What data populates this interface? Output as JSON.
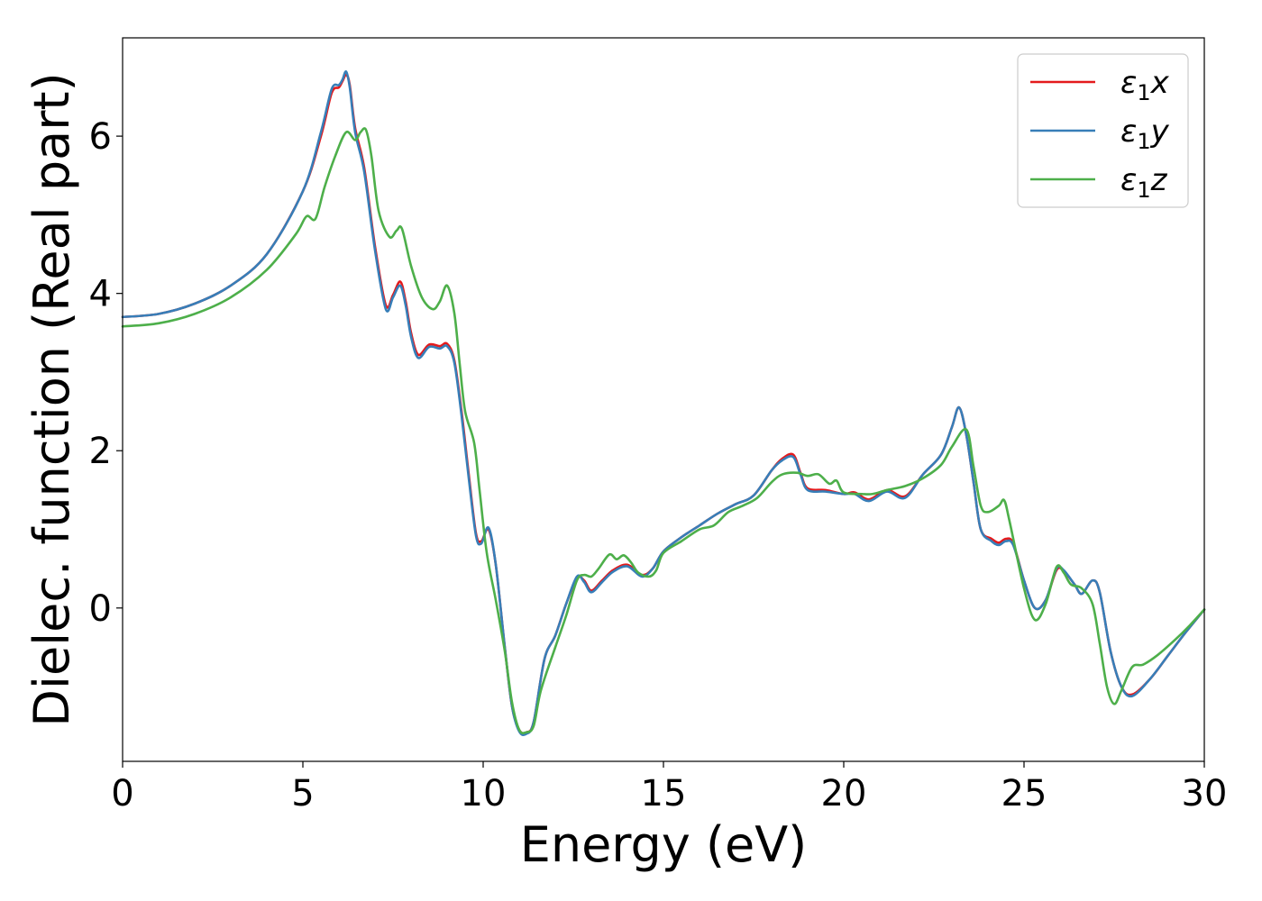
{
  "chart_data": {
    "type": "line",
    "title": "",
    "xlabel": "Energy (eV)",
    "ylabel": "Dielec. function (Real part)",
    "xlim": [
      0,
      30
    ],
    "ylim": [
      -1.95,
      7.25
    ],
    "xticks": [
      0,
      5,
      10,
      15,
      20,
      25,
      30
    ],
    "yticks": [
      0,
      2,
      4,
      6
    ],
    "xtick_labels": [
      "0",
      "5",
      "10",
      "15",
      "20",
      "25",
      "30"
    ],
    "ytick_labels": [
      "0",
      "2",
      "4",
      "6"
    ],
    "grid": false,
    "legend_position": "top-right",
    "series": [
      {
        "name": "ε₁x",
        "name_base": "ε",
        "name_sub": "1",
        "name_var": "x",
        "color": "#e41a1c",
        "points": [
          [
            0,
            3.7
          ],
          [
            1,
            3.74
          ],
          [
            2,
            3.87
          ],
          [
            3,
            4.1
          ],
          [
            4,
            4.5
          ],
          [
            5,
            5.3
          ],
          [
            5.5,
            6.0
          ],
          [
            5.8,
            6.55
          ],
          [
            6.0,
            6.62
          ],
          [
            6.1,
            6.7
          ],
          [
            6.2,
            6.78
          ],
          [
            6.3,
            6.65
          ],
          [
            6.45,
            6.1
          ],
          [
            6.7,
            5.6
          ],
          [
            7.0,
            4.6
          ],
          [
            7.3,
            3.85
          ],
          [
            7.5,
            3.98
          ],
          [
            7.7,
            4.15
          ],
          [
            7.85,
            3.9
          ],
          [
            8.0,
            3.5
          ],
          [
            8.2,
            3.22
          ],
          [
            8.5,
            3.35
          ],
          [
            8.8,
            3.33
          ],
          [
            9.0,
            3.36
          ],
          [
            9.2,
            3.15
          ],
          [
            9.4,
            2.5
          ],
          [
            9.6,
            1.7
          ],
          [
            9.8,
            0.95
          ],
          [
            9.95,
            0.85
          ],
          [
            10.15,
            1.0
          ],
          [
            10.35,
            0.55
          ],
          [
            10.6,
            -0.5
          ],
          [
            10.8,
            -1.25
          ],
          [
            11.0,
            -1.55
          ],
          [
            11.2,
            -1.58
          ],
          [
            11.4,
            -1.45
          ],
          [
            11.7,
            -0.65
          ],
          [
            12.0,
            -0.35
          ],
          [
            12.3,
            0.05
          ],
          [
            12.6,
            0.38
          ],
          [
            12.8,
            0.35
          ],
          [
            13.0,
            0.22
          ],
          [
            13.3,
            0.35
          ],
          [
            13.6,
            0.48
          ],
          [
            14.0,
            0.55
          ],
          [
            14.4,
            0.42
          ],
          [
            14.7,
            0.5
          ],
          [
            15.0,
            0.72
          ],
          [
            15.5,
            0.9
          ],
          [
            16.0,
            1.05
          ],
          [
            16.5,
            1.2
          ],
          [
            17.0,
            1.32
          ],
          [
            17.5,
            1.43
          ],
          [
            18.0,
            1.75
          ],
          [
            18.3,
            1.9
          ],
          [
            18.6,
            1.95
          ],
          [
            18.8,
            1.72
          ],
          [
            19.0,
            1.52
          ],
          [
            19.5,
            1.5
          ],
          [
            20.0,
            1.45
          ],
          [
            20.3,
            1.47
          ],
          [
            20.7,
            1.38
          ],
          [
            21.2,
            1.5
          ],
          [
            21.7,
            1.42
          ],
          [
            22.2,
            1.7
          ],
          [
            22.7,
            1.95
          ],
          [
            23.0,
            2.3
          ],
          [
            23.2,
            2.55
          ],
          [
            23.4,
            2.2
          ],
          [
            23.6,
            1.6
          ],
          [
            23.8,
            1.0
          ],
          [
            24.1,
            0.88
          ],
          [
            24.3,
            0.83
          ],
          [
            24.5,
            0.88
          ],
          [
            24.7,
            0.82
          ],
          [
            25.0,
            0.35
          ],
          [
            25.3,
            0.0
          ],
          [
            25.6,
            0.1
          ],
          [
            25.9,
            0.48
          ],
          [
            26.1,
            0.47
          ],
          [
            26.4,
            0.3
          ],
          [
            26.6,
            0.18
          ],
          [
            26.9,
            0.35
          ],
          [
            27.1,
            0.2
          ],
          [
            27.4,
            -0.55
          ],
          [
            27.7,
            -1.0
          ],
          [
            28.0,
            -1.1
          ],
          [
            28.5,
            -0.9
          ],
          [
            29.0,
            -0.6
          ],
          [
            29.5,
            -0.3
          ],
          [
            30.0,
            -0.02
          ]
        ]
      },
      {
        "name": "ε₁y",
        "name_base": "ε",
        "name_sub": "1",
        "name_var": "y",
        "color": "#377eb8",
        "points": [
          [
            0,
            3.7
          ],
          [
            1,
            3.74
          ],
          [
            2,
            3.87
          ],
          [
            3,
            4.1
          ],
          [
            4,
            4.5
          ],
          [
            5,
            5.3
          ],
          [
            5.5,
            6.05
          ],
          [
            5.8,
            6.6
          ],
          [
            6.0,
            6.65
          ],
          [
            6.1,
            6.72
          ],
          [
            6.2,
            6.82
          ],
          [
            6.3,
            6.62
          ],
          [
            6.45,
            6.05
          ],
          [
            6.7,
            5.55
          ],
          [
            7.0,
            4.55
          ],
          [
            7.3,
            3.8
          ],
          [
            7.5,
            3.95
          ],
          [
            7.7,
            4.1
          ],
          [
            7.85,
            3.85
          ],
          [
            8.0,
            3.45
          ],
          [
            8.2,
            3.18
          ],
          [
            8.5,
            3.32
          ],
          [
            8.8,
            3.3
          ],
          [
            9.0,
            3.33
          ],
          [
            9.2,
            3.12
          ],
          [
            9.4,
            2.45
          ],
          [
            9.6,
            1.65
          ],
          [
            9.8,
            0.92
          ],
          [
            9.95,
            0.82
          ],
          [
            10.15,
            1.02
          ],
          [
            10.35,
            0.55
          ],
          [
            10.6,
            -0.5
          ],
          [
            10.8,
            -1.25
          ],
          [
            11.0,
            -1.57
          ],
          [
            11.2,
            -1.6
          ],
          [
            11.4,
            -1.45
          ],
          [
            11.7,
            -0.65
          ],
          [
            12.0,
            -0.35
          ],
          [
            12.3,
            0.05
          ],
          [
            12.6,
            0.4
          ],
          [
            12.8,
            0.33
          ],
          [
            13.0,
            0.2
          ],
          [
            13.3,
            0.33
          ],
          [
            13.6,
            0.46
          ],
          [
            14.0,
            0.53
          ],
          [
            14.4,
            0.4
          ],
          [
            14.7,
            0.5
          ],
          [
            15.0,
            0.72
          ],
          [
            15.5,
            0.9
          ],
          [
            16.0,
            1.05
          ],
          [
            16.5,
            1.2
          ],
          [
            17.0,
            1.32
          ],
          [
            17.5,
            1.43
          ],
          [
            18.0,
            1.75
          ],
          [
            18.3,
            1.88
          ],
          [
            18.6,
            1.92
          ],
          [
            18.8,
            1.7
          ],
          [
            19.0,
            1.5
          ],
          [
            19.5,
            1.48
          ],
          [
            20.0,
            1.45
          ],
          [
            20.3,
            1.45
          ],
          [
            20.7,
            1.36
          ],
          [
            21.2,
            1.48
          ],
          [
            21.7,
            1.4
          ],
          [
            22.2,
            1.7
          ],
          [
            22.7,
            1.95
          ],
          [
            23.0,
            2.3
          ],
          [
            23.2,
            2.55
          ],
          [
            23.4,
            2.2
          ],
          [
            23.6,
            1.6
          ],
          [
            23.8,
            1.0
          ],
          [
            24.1,
            0.85
          ],
          [
            24.3,
            0.8
          ],
          [
            24.5,
            0.85
          ],
          [
            24.7,
            0.8
          ],
          [
            25.0,
            0.35
          ],
          [
            25.3,
            0.0
          ],
          [
            25.6,
            0.1
          ],
          [
            25.9,
            0.5
          ],
          [
            26.1,
            0.48
          ],
          [
            26.4,
            0.3
          ],
          [
            26.6,
            0.18
          ],
          [
            26.9,
            0.35
          ],
          [
            27.1,
            0.2
          ],
          [
            27.4,
            -0.55
          ],
          [
            27.7,
            -1.0
          ],
          [
            28.0,
            -1.12
          ],
          [
            28.5,
            -0.9
          ],
          [
            29.0,
            -0.6
          ],
          [
            29.5,
            -0.3
          ],
          [
            30.0,
            -0.02
          ]
        ]
      },
      {
        "name": "ε₁z",
        "name_base": "ε",
        "name_sub": "1",
        "name_var": "z",
        "color": "#4daf4a",
        "points": [
          [
            0,
            3.58
          ],
          [
            1,
            3.62
          ],
          [
            2,
            3.74
          ],
          [
            3,
            3.95
          ],
          [
            4,
            4.3
          ],
          [
            4.8,
            4.75
          ],
          [
            5.1,
            4.98
          ],
          [
            5.35,
            4.95
          ],
          [
            5.6,
            5.35
          ],
          [
            5.9,
            5.75
          ],
          [
            6.2,
            6.05
          ],
          [
            6.45,
            5.95
          ],
          [
            6.6,
            6.05
          ],
          [
            6.75,
            6.08
          ],
          [
            6.9,
            5.75
          ],
          [
            7.1,
            5.05
          ],
          [
            7.4,
            4.72
          ],
          [
            7.6,
            4.8
          ],
          [
            7.75,
            4.82
          ],
          [
            8.0,
            4.35
          ],
          [
            8.3,
            3.95
          ],
          [
            8.6,
            3.8
          ],
          [
            8.8,
            3.9
          ],
          [
            9.0,
            4.1
          ],
          [
            9.2,
            3.75
          ],
          [
            9.35,
            3.1
          ],
          [
            9.5,
            2.5
          ],
          [
            9.75,
            2.1
          ],
          [
            9.9,
            1.5
          ],
          [
            10.1,
            0.7
          ],
          [
            10.35,
            0.1
          ],
          [
            10.6,
            -0.55
          ],
          [
            10.8,
            -1.2
          ],
          [
            11.0,
            -1.55
          ],
          [
            11.2,
            -1.58
          ],
          [
            11.4,
            -1.5
          ],
          [
            11.6,
            -1.05
          ],
          [
            12.0,
            -0.5
          ],
          [
            12.3,
            -0.1
          ],
          [
            12.6,
            0.35
          ],
          [
            12.8,
            0.42
          ],
          [
            13.0,
            0.4
          ],
          [
            13.2,
            0.5
          ],
          [
            13.5,
            0.68
          ],
          [
            13.7,
            0.62
          ],
          [
            13.9,
            0.67
          ],
          [
            14.1,
            0.58
          ],
          [
            14.3,
            0.45
          ],
          [
            14.6,
            0.4
          ],
          [
            14.8,
            0.48
          ],
          [
            15.0,
            0.7
          ],
          [
            15.5,
            0.85
          ],
          [
            16.0,
            1.0
          ],
          [
            16.4,
            1.05
          ],
          [
            16.8,
            1.22
          ],
          [
            17.2,
            1.3
          ],
          [
            17.6,
            1.4
          ],
          [
            18.0,
            1.6
          ],
          [
            18.3,
            1.7
          ],
          [
            18.7,
            1.72
          ],
          [
            19.0,
            1.68
          ],
          [
            19.3,
            1.7
          ],
          [
            19.6,
            1.58
          ],
          [
            19.8,
            1.62
          ],
          [
            20.0,
            1.47
          ],
          [
            20.5,
            1.45
          ],
          [
            20.8,
            1.45
          ],
          [
            21.2,
            1.5
          ],
          [
            21.7,
            1.55
          ],
          [
            22.2,
            1.65
          ],
          [
            22.7,
            1.82
          ],
          [
            23.0,
            2.05
          ],
          [
            23.4,
            2.27
          ],
          [
            23.6,
            1.8
          ],
          [
            23.8,
            1.3
          ],
          [
            24.0,
            1.22
          ],
          [
            24.3,
            1.3
          ],
          [
            24.45,
            1.37
          ],
          [
            24.6,
            1.1
          ],
          [
            25.0,
            0.25
          ],
          [
            25.3,
            -0.15
          ],
          [
            25.6,
            0.05
          ],
          [
            25.9,
            0.52
          ],
          [
            26.1,
            0.45
          ],
          [
            26.3,
            0.3
          ],
          [
            26.6,
            0.25
          ],
          [
            26.9,
            0.05
          ],
          [
            27.1,
            -0.45
          ],
          [
            27.3,
            -1.0
          ],
          [
            27.5,
            -1.22
          ],
          [
            27.7,
            -1.05
          ],
          [
            28.0,
            -0.75
          ],
          [
            28.3,
            -0.72
          ],
          [
            28.7,
            -0.6
          ],
          [
            29.2,
            -0.4
          ],
          [
            29.6,
            -0.22
          ],
          [
            30.0,
            -0.02
          ]
        ]
      }
    ]
  }
}
